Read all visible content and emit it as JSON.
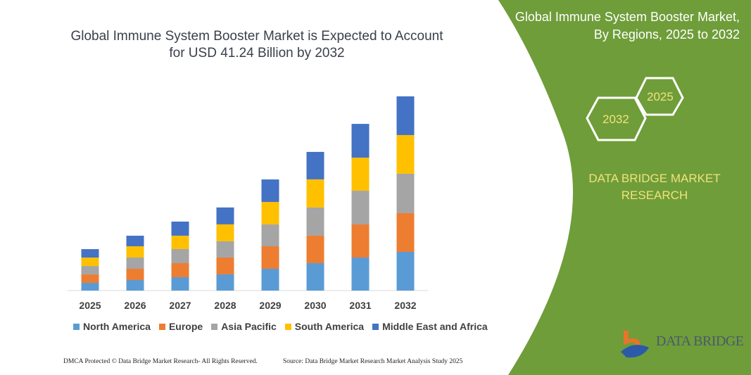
{
  "title": "Global Immune System Booster Market is Expected to Account for USD 41.24 Billion by 2032",
  "side_panel": {
    "title": "Global Immune System Booster Market, By Regions, 2025 to 2032",
    "hex_start": "2025",
    "hex_end": "2032",
    "brand": "DATA BRIDGE MARKET RESEARCH",
    "logo": "DATA BRIDGE",
    "color": "#6f9d3a"
  },
  "footer": {
    "left": "DMCA Protected © Data Bridge Market Research- All Rights Reserved.",
    "right": "Source: Data Bridge Market Research Market Analysis Study 2025"
  },
  "chart_data": {
    "type": "bar",
    "stacked": true,
    "title": "Global Immune System Booster Market is Expected to Account for USD 41.24 Billion by 2032",
    "xlabel": "",
    "ylabel": "",
    "ylim": [
      0,
      41.24
    ],
    "grid": false,
    "legend_position": "bottom",
    "categories": [
      "2025",
      "2026",
      "2027",
      "2028",
      "2029",
      "2030",
      "2031",
      "2032"
    ],
    "series": [
      {
        "name": "North America",
        "color": "#5b9bd5",
        "values": [
          1.64,
          2.24,
          2.84,
          3.44,
          4.63,
          5.83,
          7.02,
          8.22
        ]
      },
      {
        "name": "Europe",
        "color": "#ed7d31",
        "values": [
          1.79,
          2.39,
          2.99,
          3.59,
          4.78,
          5.83,
          7.02,
          8.22
        ]
      },
      {
        "name": "Asia Pacific",
        "color": "#a5a5a5",
        "values": [
          1.79,
          2.39,
          2.99,
          3.44,
          4.63,
          5.98,
          7.17,
          8.37
        ]
      },
      {
        "name": "South America",
        "color": "#ffc000",
        "values": [
          1.79,
          2.39,
          2.84,
          3.59,
          4.78,
          5.98,
          7.02,
          8.22
        ]
      },
      {
        "name": "Middle East and Africa",
        "color": "#4472c4",
        "values": [
          1.79,
          2.24,
          2.99,
          3.59,
          4.78,
          5.83,
          7.17,
          8.22
        ]
      }
    ]
  }
}
